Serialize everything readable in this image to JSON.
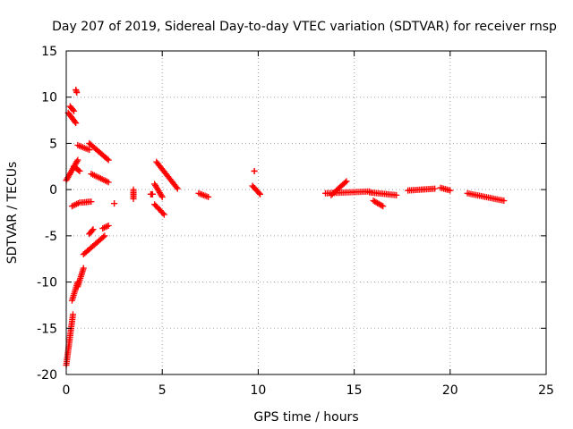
{
  "chart_data": {
    "type": "scatter",
    "title": "Day 207 of 2019, Sidereal Day-to-day VTEC variation (SDTVAR) for receiver rnsp",
    "xlabel": "GPS time / hours",
    "ylabel": "SDTVAR / TECUs",
    "xlim": [
      0,
      25
    ],
    "ylim": [
      -20,
      15
    ],
    "xticks": [
      "0",
      "5",
      "10",
      "15",
      "20",
      "25"
    ],
    "yticks": [
      "-20",
      "-15",
      "-10",
      "-5",
      "0",
      "5",
      "10",
      "15"
    ],
    "grid": true,
    "marker": "plus",
    "series": [
      {
        "name": "SDTVAR",
        "color": "#ff0000",
        "segments": [
          {
            "x": [
              0.0,
              0.35
            ],
            "y": [
              -19.0,
              -13.5
            ]
          },
          {
            "x": [
              0.3,
              0.6
            ],
            "y": [
              -12.0,
              -10.0
            ]
          },
          {
            "x": [
              0.6,
              0.9
            ],
            "y": [
              -10.5,
              -8.5
            ]
          },
          {
            "x": [
              0.9,
              2.0
            ],
            "y": [
              -7.0,
              -5.0
            ]
          },
          {
            "x": [
              1.2,
              1.4
            ],
            "y": [
              -4.8,
              -4.3
            ]
          },
          {
            "x": [
              1.9,
              2.2
            ],
            "y": [
              -4.2,
              -3.9
            ]
          },
          {
            "x": [
              0.0,
              0.6
            ],
            "y": [
              1.0,
              3.2
            ]
          },
          {
            "x": [
              0.1,
              0.5
            ],
            "y": [
              8.3,
              7.2
            ]
          },
          {
            "x": [
              0.2,
              0.4
            ],
            "y": [
              9.0,
              8.5
            ]
          },
          {
            "x": [
              0.5,
              0.55
            ],
            "y": [
              10.8,
              10.5
            ]
          },
          {
            "x": [
              0.3,
              0.7
            ],
            "y": [
              -1.8,
              -1.4
            ]
          },
          {
            "x": [
              0.6,
              1.2
            ],
            "y": [
              4.8,
              4.3
            ]
          },
          {
            "x": [
              1.2,
              2.2
            ],
            "y": [
              5.0,
              3.2
            ]
          },
          {
            "x": [
              1.3,
              2.2
            ],
            "y": [
              1.7,
              0.8
            ]
          },
          {
            "x": [
              0.8,
              1.3
            ],
            "y": [
              -1.4,
              -1.3
            ]
          },
          {
            "x": [
              0.4,
              0.7
            ],
            "y": [
              2.5,
              2.0
            ]
          },
          {
            "x": [
              2.5,
              2.5
            ],
            "y": [
              -1.5,
              -1.5
            ]
          },
          {
            "x": [
              3.5,
              3.5
            ],
            "y": [
              -1.0,
              0.0
            ]
          },
          {
            "x": [
              4.4,
              4.5
            ],
            "y": [
              -0.5,
              -0.5
            ]
          },
          {
            "x": [
              4.6,
              5.1
            ],
            "y": [
              -1.6,
              -2.7
            ]
          },
          {
            "x": [
              4.6,
              5.0
            ],
            "y": [
              0.6,
              -0.8
            ]
          },
          {
            "x": [
              4.7,
              5.8
            ],
            "y": [
              3.0,
              0.1
            ]
          },
          {
            "x": [
              6.9,
              7.4
            ],
            "y": [
              -0.4,
              -0.8
            ]
          },
          {
            "x": [
              9.8,
              9.8
            ],
            "y": [
              2.0,
              2.0
            ]
          },
          {
            "x": [
              9.7,
              10.1
            ],
            "y": [
              0.4,
              -0.5
            ]
          },
          {
            "x": [
              13.5,
              15.8
            ],
            "y": [
              -0.4,
              -0.2
            ]
          },
          {
            "x": [
              13.8,
              14.6
            ],
            "y": [
              -0.6,
              0.9
            ]
          },
          {
            "x": [
              15.8,
              17.2
            ],
            "y": [
              -0.3,
              -0.6
            ]
          },
          {
            "x": [
              16.0,
              16.5
            ],
            "y": [
              -1.2,
              -1.8
            ]
          },
          {
            "x": [
              17.8,
              19.2
            ],
            "y": [
              -0.1,
              0.1
            ]
          },
          {
            "x": [
              19.5,
              20.0
            ],
            "y": [
              0.2,
              -0.1
            ]
          },
          {
            "x": [
              20.9,
              22.8
            ],
            "y": [
              -0.4,
              -1.2
            ]
          }
        ]
      }
    ]
  }
}
